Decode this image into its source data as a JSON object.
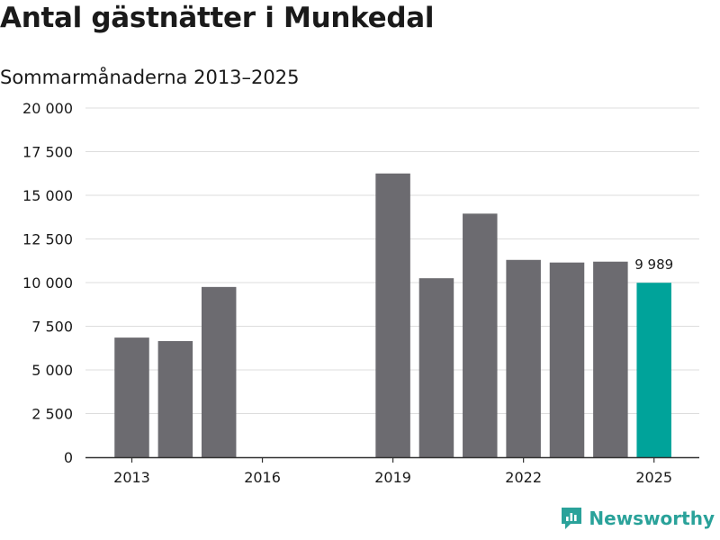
{
  "title": "Antal gästnätter i Munkedal",
  "subtitle": "Sommarmånaderna 2013–2025",
  "brand": "Newsworthy",
  "colors": {
    "bar": "#6c6b70",
    "highlight": "#00a39a",
    "grid": "#dddddd",
    "axis": "#333333",
    "brand": "#2aa29a"
  },
  "chart_data": {
    "type": "bar",
    "x": [
      2013,
      2014,
      2015,
      2016,
      2017,
      2018,
      2019,
      2020,
      2021,
      2022,
      2023,
      2024,
      2025
    ],
    "values": [
      6850,
      6650,
      9750,
      null,
      null,
      null,
      16250,
      10250,
      13950,
      11300,
      11150,
      11200,
      9989
    ],
    "highlight_index": 12,
    "data_labels": [
      {
        "index": 12,
        "text": "9 989"
      }
    ],
    "ylim": [
      0,
      20000
    ],
    "yticks": [
      0,
      2500,
      5000,
      7500,
      10000,
      12500,
      15000,
      17500,
      20000
    ],
    "ytick_labels": [
      "0",
      "2 500",
      "5 000",
      "7 500",
      "10 000",
      "12 500",
      "15 000",
      "17 500",
      "20 000"
    ],
    "xticks": [
      2013,
      2016,
      2019,
      2022,
      2025
    ],
    "xtick_labels": [
      "2013",
      "2016",
      "2019",
      "2022",
      "2025"
    ],
    "grid": true
  }
}
